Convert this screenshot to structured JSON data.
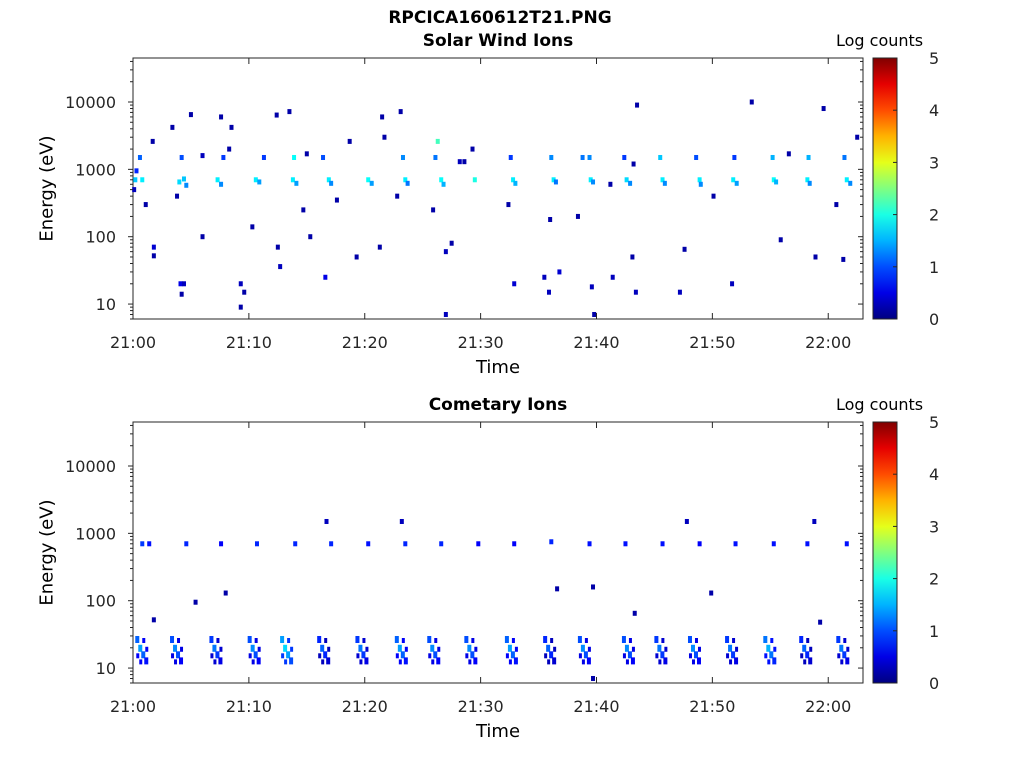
{
  "title": "RPCICA160612T21.PNG",
  "colorbar": {
    "label": "Log counts",
    "ticks": [
      0,
      1,
      2,
      3,
      4,
      5
    ],
    "colormap": "jet"
  },
  "chart_data": [
    {
      "type": "heatmap",
      "title": "Solar Wind Ions",
      "xlabel": "Time",
      "ylabel": "Energy (eV)",
      "yscale": "log",
      "ylim": [
        6,
        45000
      ],
      "xlim": [
        "21:00",
        "22:03"
      ],
      "x_ticks": [
        "21:00",
        "21:10",
        "21:20",
        "21:30",
        "21:40",
        "21:50",
        "22:00"
      ],
      "y_ticks": [
        "10",
        "100",
        "1000",
        "10000"
      ],
      "clim": [
        0,
        5
      ],
      "points": [
        {
          "t": 0.2,
          "e": 700,
          "v": 1.6
        },
        {
          "t": 0.8,
          "e": 700,
          "v": 1.8
        },
        {
          "t": 0.6,
          "e": 1500,
          "v": 1.1
        },
        {
          "t": 0.3,
          "e": 950,
          "v": 0.8
        },
        {
          "t": 0.1,
          "e": 500,
          "v": 0.3
        },
        {
          "t": 1.1,
          "e": 300,
          "v": 0.2
        },
        {
          "t": 1.7,
          "e": 2600,
          "v": 0.2
        },
        {
          "t": 1.8,
          "e": 70,
          "v": 0.4
        },
        {
          "t": 1.8,
          "e": 52,
          "v": 0.2
        },
        {
          "t": 4.0,
          "e": 650,
          "v": 1.7
        },
        {
          "t": 4.4,
          "e": 720,
          "v": 1.6
        },
        {
          "t": 4.6,
          "e": 580,
          "v": 1.3
        },
        {
          "t": 4.2,
          "e": 1500,
          "v": 1.0
        },
        {
          "t": 3.4,
          "e": 4200,
          "v": 0.2
        },
        {
          "t": 5.0,
          "e": 6500,
          "v": 0.2
        },
        {
          "t": 3.8,
          "e": 400,
          "v": 0.2
        },
        {
          "t": 4.1,
          "e": 20,
          "v": 0.5
        },
        {
          "t": 4.2,
          "e": 14,
          "v": 0.2
        },
        {
          "t": 4.4,
          "e": 20,
          "v": 0.3
        },
        {
          "t": 7.3,
          "e": 700,
          "v": 1.8
        },
        {
          "t": 7.6,
          "e": 600,
          "v": 1.3
        },
        {
          "t": 7.8,
          "e": 1500,
          "v": 0.9
        },
        {
          "t": 6.0,
          "e": 1600,
          "v": 0.3
        },
        {
          "t": 7.6,
          "e": 6000,
          "v": 0.2
        },
        {
          "t": 8.5,
          "e": 4200,
          "v": 0.2
        },
        {
          "t": 9.3,
          "e": 20,
          "v": 0.3
        },
        {
          "t": 9.3,
          "e": 9,
          "v": 0.2
        },
        {
          "t": 9.6,
          "e": 15,
          "v": 0.2
        },
        {
          "t": 8.3,
          "e": 2000,
          "v": 0.2
        },
        {
          "t": 6.0,
          "e": 100,
          "v": 0.2
        },
        {
          "t": 10.6,
          "e": 700,
          "v": 1.8
        },
        {
          "t": 10.9,
          "e": 650,
          "v": 1.4
        },
        {
          "t": 11.3,
          "e": 1500,
          "v": 0.9
        },
        {
          "t": 10.3,
          "e": 140,
          "v": 0.2
        },
        {
          "t": 12.4,
          "e": 6400,
          "v": 0.2
        },
        {
          "t": 13.5,
          "e": 7200,
          "v": 0.2
        },
        {
          "t": 12.5,
          "e": 70,
          "v": 0.2
        },
        {
          "t": 12.7,
          "e": 36,
          "v": 0.3
        },
        {
          "t": 13.8,
          "e": 700,
          "v": 1.8
        },
        {
          "t": 14.1,
          "e": 620,
          "v": 1.4
        },
        {
          "t": 13.9,
          "e": 1500,
          "v": 1.9
        },
        {
          "t": 14.7,
          "e": 250,
          "v": 0.2
        },
        {
          "t": 15.0,
          "e": 1700,
          "v": 0.2
        },
        {
          "t": 15.3,
          "e": 100,
          "v": 0.2
        },
        {
          "t": 16.9,
          "e": 700,
          "v": 1.8
        },
        {
          "t": 17.1,
          "e": 620,
          "v": 1.3
        },
        {
          "t": 16.4,
          "e": 1500,
          "v": 1.0
        },
        {
          "t": 16.6,
          "e": 25,
          "v": 0.5
        },
        {
          "t": 17.6,
          "e": 350,
          "v": 0.2
        },
        {
          "t": 18.7,
          "e": 2600,
          "v": 0.2
        },
        {
          "t": 19.3,
          "e": 50,
          "v": 0.2
        },
        {
          "t": 20.3,
          "e": 700,
          "v": 1.9
        },
        {
          "t": 20.6,
          "e": 620,
          "v": 1.4
        },
        {
          "t": 21.5,
          "e": 6000,
          "v": 0.2
        },
        {
          "t": 21.7,
          "e": 3000,
          "v": 0.2
        },
        {
          "t": 21.3,
          "e": 70,
          "v": 0.2
        },
        {
          "t": 23.5,
          "e": 700,
          "v": 1.8
        },
        {
          "t": 23.7,
          "e": 620,
          "v": 1.2
        },
        {
          "t": 23.3,
          "e": 1500,
          "v": 1.3
        },
        {
          "t": 23.1,
          "e": 7200,
          "v": 0.2
        },
        {
          "t": 22.8,
          "e": 400,
          "v": 0.2
        },
        {
          "t": 26.6,
          "e": 700,
          "v": 1.9
        },
        {
          "t": 26.8,
          "e": 600,
          "v": 1.5
        },
        {
          "t": 26.1,
          "e": 1500,
          "v": 1.2
        },
        {
          "t": 26.3,
          "e": 2600,
          "v": 2.2
        },
        {
          "t": 27.5,
          "e": 80,
          "v": 0.2
        },
        {
          "t": 25.9,
          "e": 250,
          "v": 0.2
        },
        {
          "t": 28.2,
          "e": 1300,
          "v": 0.3
        },
        {
          "t": 28.6,
          "e": 1300,
          "v": 0.2
        },
        {
          "t": 29.5,
          "e": 700,
          "v": 2.0
        },
        {
          "t": 29.3,
          "e": 2000,
          "v": 0.2
        },
        {
          "t": 27.0,
          "e": 60,
          "v": 0.3
        },
        {
          "t": 27.0,
          "e": 7,
          "v": 0.3
        },
        {
          "t": 32.8,
          "e": 700,
          "v": 1.8
        },
        {
          "t": 33.0,
          "e": 620,
          "v": 1.5
        },
        {
          "t": 32.6,
          "e": 1500,
          "v": 0.9
        },
        {
          "t": 32.4,
          "e": 300,
          "v": 0.2
        },
        {
          "t": 32.9,
          "e": 20,
          "v": 0.4
        },
        {
          "t": 35.5,
          "e": 25,
          "v": 0.3
        },
        {
          "t": 35.9,
          "e": 15,
          "v": 0.3
        },
        {
          "t": 36.0,
          "e": 180,
          "v": 0.2
        },
        {
          "t": 36.3,
          "e": 700,
          "v": 1.8
        },
        {
          "t": 36.5,
          "e": 650,
          "v": 1.2
        },
        {
          "t": 36.1,
          "e": 1500,
          "v": 1.3
        },
        {
          "t": 36.8,
          "e": 30,
          "v": 0.4
        },
        {
          "t": 38.8,
          "e": 1500,
          "v": 1.2
        },
        {
          "t": 39.5,
          "e": 700,
          "v": 1.8
        },
        {
          "t": 39.7,
          "e": 650,
          "v": 1.3
        },
        {
          "t": 39.4,
          "e": 1500,
          "v": 1.3
        },
        {
          "t": 38.4,
          "e": 200,
          "v": 0.2
        },
        {
          "t": 39.6,
          "e": 18,
          "v": 0.3
        },
        {
          "t": 39.8,
          "e": 7,
          "v": 0.2
        },
        {
          "t": 41.2,
          "e": 600,
          "v": 0.2
        },
        {
          "t": 41.4,
          "e": 25,
          "v": 0.3
        },
        {
          "t": 42.6,
          "e": 700,
          "v": 1.7
        },
        {
          "t": 42.9,
          "e": 620,
          "v": 1.3
        },
        {
          "t": 42.4,
          "e": 1500,
          "v": 0.9
        },
        {
          "t": 43.2,
          "e": 1200,
          "v": 0.2
        },
        {
          "t": 43.5,
          "e": 9000,
          "v": 0.2
        },
        {
          "t": 43.4,
          "e": 15,
          "v": 0.3
        },
        {
          "t": 43.1,
          "e": 50,
          "v": 0.2
        },
        {
          "t": 45.7,
          "e": 700,
          "v": 1.8
        },
        {
          "t": 45.9,
          "e": 620,
          "v": 1.3
        },
        {
          "t": 45.5,
          "e": 1500,
          "v": 1.6
        },
        {
          "t": 47.2,
          "e": 15,
          "v": 0.3
        },
        {
          "t": 47.6,
          "e": 65,
          "v": 0.2
        },
        {
          "t": 48.9,
          "e": 700,
          "v": 1.8
        },
        {
          "t": 49.0,
          "e": 600,
          "v": 1.3
        },
        {
          "t": 48.6,
          "e": 1500,
          "v": 1.0
        },
        {
          "t": 50.1,
          "e": 400,
          "v": 0.2
        },
        {
          "t": 51.8,
          "e": 700,
          "v": 1.8
        },
        {
          "t": 52.1,
          "e": 620,
          "v": 1.4
        },
        {
          "t": 51.9,
          "e": 1500,
          "v": 0.9
        },
        {
          "t": 51.7,
          "e": 20,
          "v": 0.3
        },
        {
          "t": 53.4,
          "e": 10000,
          "v": 0.2
        },
        {
          "t": 55.3,
          "e": 700,
          "v": 1.9
        },
        {
          "t": 55.5,
          "e": 650,
          "v": 1.5
        },
        {
          "t": 55.2,
          "e": 1500,
          "v": 1.5
        },
        {
          "t": 55.9,
          "e": 90,
          "v": 0.2
        },
        {
          "t": 56.6,
          "e": 1700,
          "v": 0.2
        },
        {
          "t": 58.2,
          "e": 700,
          "v": 1.8
        },
        {
          "t": 58.4,
          "e": 620,
          "v": 1.3
        },
        {
          "t": 58.3,
          "e": 1500,
          "v": 1.5
        },
        {
          "t": 58.9,
          "e": 50,
          "v": 0.2
        },
        {
          "t": 59.6,
          "e": 8000,
          "v": 0.2
        },
        {
          "t": 61.6,
          "e": 700,
          "v": 1.8
        },
        {
          "t": 61.9,
          "e": 620,
          "v": 1.3
        },
        {
          "t": 61.4,
          "e": 1500,
          "v": 1.2
        },
        {
          "t": 60.7,
          "e": 300,
          "v": 0.2
        },
        {
          "t": 61.3,
          "e": 46,
          "v": 0.2
        },
        {
          "t": 62.5,
          "e": 3000,
          "v": 0.2
        }
      ]
    },
    {
      "type": "heatmap",
      "title": "Cometary Ions",
      "xlabel": "Time",
      "ylabel": "Energy (eV)",
      "yscale": "log",
      "ylim": [
        6,
        45000
      ],
      "xlim": [
        "21:00",
        "22:03"
      ],
      "x_ticks": [
        "21:00",
        "21:10",
        "21:20",
        "21:30",
        "21:40",
        "21:50",
        "22:00"
      ],
      "y_ticks": [
        "10",
        "100",
        "1000",
        "10000"
      ],
      "clim": [
        0,
        5
      ],
      "points": [
        {
          "t": 0.8,
          "e": 700,
          "v": 0.9
        },
        {
          "t": 1.4,
          "e": 700,
          "v": 0.7
        },
        {
          "t": 1.8,
          "e": 52,
          "v": 0.2
        },
        {
          "t": 4.6,
          "e": 700,
          "v": 0.8
        },
        {
          "t": 5.4,
          "e": 95,
          "v": 0.2
        },
        {
          "t": 7.6,
          "e": 700,
          "v": 0.6
        },
        {
          "t": 8.0,
          "e": 130,
          "v": 0.2
        },
        {
          "t": 10.7,
          "e": 700,
          "v": 0.8
        },
        {
          "t": 14.0,
          "e": 700,
          "v": 0.8
        },
        {
          "t": 16.7,
          "e": 1500,
          "v": 0.3
        },
        {
          "t": 17.1,
          "e": 700,
          "v": 0.8
        },
        {
          "t": 20.3,
          "e": 700,
          "v": 0.7
        },
        {
          "t": 23.2,
          "e": 1500,
          "v": 0.3
        },
        {
          "t": 23.5,
          "e": 700,
          "v": 0.8
        },
        {
          "t": 26.6,
          "e": 700,
          "v": 0.8
        },
        {
          "t": 29.8,
          "e": 700,
          "v": 0.6
        },
        {
          "t": 32.9,
          "e": 700,
          "v": 0.6
        },
        {
          "t": 36.1,
          "e": 750,
          "v": 0.8
        },
        {
          "t": 36.6,
          "e": 150,
          "v": 0.2
        },
        {
          "t": 39.4,
          "e": 700,
          "v": 0.7
        },
        {
          "t": 39.7,
          "e": 160,
          "v": 0.2
        },
        {
          "t": 42.5,
          "e": 700,
          "v": 0.7
        },
        {
          "t": 43.3,
          "e": 65,
          "v": 0.2
        },
        {
          "t": 45.7,
          "e": 700,
          "v": 0.7
        },
        {
          "t": 47.8,
          "e": 1500,
          "v": 0.3
        },
        {
          "t": 48.9,
          "e": 700,
          "v": 0.6
        },
        {
          "t": 49.9,
          "e": 130,
          "v": 0.2
        },
        {
          "t": 52.0,
          "e": 700,
          "v": 0.7
        },
        {
          "t": 55.3,
          "e": 700,
          "v": 0.7
        },
        {
          "t": 58.2,
          "e": 700,
          "v": 0.7
        },
        {
          "t": 58.8,
          "e": 1500,
          "v": 0.3
        },
        {
          "t": 59.3,
          "e": 48,
          "v": 0.2
        },
        {
          "t": 61.6,
          "e": 700,
          "v": 0.7
        },
        {
          "t": 39.7,
          "e": 7,
          "v": 0.2
        }
      ],
      "bursts": [
        {
          "t": 0.8,
          "v": 1.1
        },
        {
          "t": 3.8,
          "v": 1.0
        },
        {
          "t": 7.2,
          "v": 0.9
        },
        {
          "t": 10.5,
          "v": 1.0
        },
        {
          "t": 13.3,
          "v": 1.4
        },
        {
          "t": 16.5,
          "v": 0.8
        },
        {
          "t": 19.8,
          "v": 0.9
        },
        {
          "t": 23.2,
          "v": 1.1
        },
        {
          "t": 26.0,
          "v": 1.0
        },
        {
          "t": 29.2,
          "v": 1.0
        },
        {
          "t": 32.7,
          "v": 1.1
        },
        {
          "t": 36.0,
          "v": 0.8
        },
        {
          "t": 39.0,
          "v": 1.0
        },
        {
          "t": 42.8,
          "v": 1.0
        },
        {
          "t": 45.6,
          "v": 0.9
        },
        {
          "t": 48.5,
          "v": 1.0
        },
        {
          "t": 51.7,
          "v": 0.9
        },
        {
          "t": 55.0,
          "v": 1.2
        },
        {
          "t": 58.1,
          "v": 0.8
        },
        {
          "t": 61.3,
          "v": 0.9
        }
      ]
    }
  ]
}
